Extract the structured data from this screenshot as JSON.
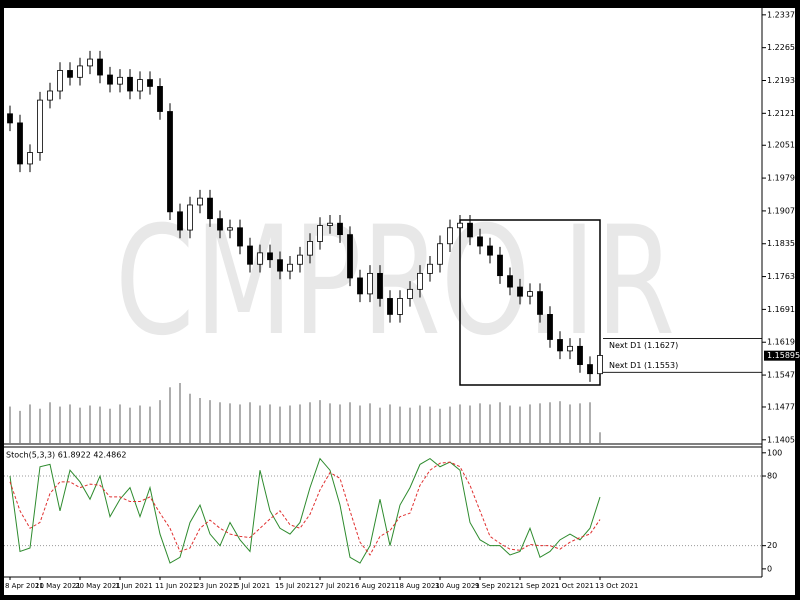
{
  "chart_data": [
    {
      "type": "candlestick",
      "watermark": "CMPRO.IR",
      "categories": [
        "8 Apr 2021",
        null,
        null,
        "10 May 2021",
        null,
        null,
        null,
        "20 May 2021",
        null,
        null,
        null,
        "1 Jun 2021",
        null,
        null,
        null,
        "11 Jun 2021",
        null,
        null,
        null,
        "23 Jun 2021",
        null,
        null,
        null,
        "5 Jul 2021",
        null,
        null,
        null,
        "15 Jul 2021",
        null,
        null,
        null,
        "27 Jul 2021",
        null,
        null,
        null,
        "6 Aug 2021",
        null,
        null,
        null,
        "18 Aug 2021",
        null,
        null,
        null,
        "30 Aug 2021",
        null,
        null,
        null,
        "9 Sep 2021",
        null,
        null,
        null,
        "21 Sep 2021",
        null,
        null,
        null,
        "1 Oct 2021",
        null,
        null,
        null,
        "13 Oct 2021"
      ],
      "open": [
        1.212,
        1.21,
        1.201,
        1.2035,
        1.215,
        1.217,
        1.2215,
        1.22,
        1.2225,
        1.224,
        1.2205,
        1.2185,
        1.22,
        1.217,
        1.2195,
        1.218,
        1.2125,
        1.1905,
        1.1865,
        1.192,
        1.1935,
        1.189,
        1.1865,
        1.187,
        1.183,
        1.179,
        1.1815,
        1.18,
        1.1775,
        1.179,
        1.181,
        1.184,
        1.1875,
        1.188,
        1.1855,
        1.176,
        1.1725,
        1.177,
        1.1715,
        1.168,
        1.1715,
        1.1735,
        1.177,
        1.179,
        1.1835,
        1.187,
        1.188,
        1.185,
        1.183,
        1.181,
        1.1765,
        1.174,
        1.172,
        1.173,
        1.168,
        1.1625,
        1.16,
        1.161,
        1.157,
        1.155
      ],
      "high": [
        1.2138,
        1.2118,
        1.2053,
        1.2168,
        1.2188,
        1.2233,
        1.2233,
        1.2243,
        1.2258,
        1.2258,
        1.2223,
        1.2218,
        1.2218,
        1.2213,
        1.2213,
        1.2198,
        1.2143,
        1.1923,
        1.1938,
        1.1953,
        1.1953,
        1.1908,
        1.1888,
        1.1888,
        1.1848,
        1.1833,
        1.1833,
        1.1818,
        1.1808,
        1.1828,
        1.1858,
        1.1893,
        1.1898,
        1.1898,
        1.1873,
        1.1778,
        1.1788,
        1.1788,
        1.1733,
        1.1733,
        1.1753,
        1.1788,
        1.1808,
        1.1853,
        1.1888,
        1.1898,
        1.1898,
        1.1868,
        1.1848,
        1.1828,
        1.1783,
        1.1758,
        1.1748,
        1.1748,
        1.1698,
        1.1643,
        1.1628,
        1.1628,
        1.1588,
        1.1608
      ],
      "low": [
        1.2082,
        1.1992,
        1.1992,
        1.2017,
        1.2132,
        1.2152,
        1.2182,
        1.2182,
        1.2207,
        1.2187,
        1.2167,
        1.2167,
        1.2152,
        1.2152,
        1.2162,
        1.2107,
        1.1887,
        1.1847,
        1.1847,
        1.1902,
        1.1872,
        1.1847,
        1.1847,
        1.1812,
        1.1772,
        1.1772,
        1.1782,
        1.1757,
        1.1757,
        1.1772,
        1.1792,
        1.1822,
        1.1857,
        1.1837,
        1.1742,
        1.1707,
        1.1707,
        1.1697,
        1.1662,
        1.1662,
        1.1697,
        1.1717,
        1.1752,
        1.1772,
        1.1817,
        1.1852,
        1.1832,
        1.1812,
        1.1792,
        1.1747,
        1.1722,
        1.1702,
        1.1702,
        1.1662,
        1.1607,
        1.1582,
        1.1582,
        1.1552,
        1.1532,
        1.1532
      ],
      "close": [
        1.21,
        1.201,
        1.2035,
        1.215,
        1.217,
        1.2215,
        1.22,
        1.2225,
        1.224,
        1.2205,
        1.2185,
        1.22,
        1.217,
        1.2195,
        1.218,
        1.2125,
        1.1905,
        1.1865,
        1.192,
        1.1935,
        1.189,
        1.1865,
        1.187,
        1.183,
        1.179,
        1.1815,
        1.18,
        1.1775,
        1.179,
        1.181,
        1.184,
        1.1875,
        1.188,
        1.1855,
        1.176,
        1.1725,
        1.177,
        1.1715,
        1.168,
        1.1715,
        1.1735,
        1.177,
        1.179,
        1.1835,
        1.187,
        1.188,
        1.185,
        1.183,
        1.181,
        1.1765,
        1.174,
        1.172,
        1.173,
        1.168,
        1.1625,
        1.16,
        1.161,
        1.157,
        1.155,
        1.159
      ],
      "volume": [
        34,
        30,
        36,
        32,
        38,
        34,
        36,
        33,
        35,
        34,
        32,
        36,
        33,
        35,
        34,
        40,
        52,
        56,
        46,
        42,
        40,
        38,
        37,
        36,
        38,
        35,
        36,
        34,
        35,
        36,
        38,
        40,
        37,
        36,
        38,
        35,
        37,
        33,
        36,
        34,
        33,
        35,
        34,
        32,
        34,
        36,
        35,
        37,
        36,
        38,
        35,
        34,
        36,
        37,
        38,
        39,
        36,
        37,
        38,
        10
      ],
      "up_color": "#ffffff",
      "down_color": "#000000",
      "outline_color": "#000000",
      "volume_color": "#777777",
      "ylim": [
        1.1398,
        1.2352
      ],
      "yticks": [
        {
          "value": 1.1405,
          "label": "1.14050"
        },
        {
          "value": 1.1477,
          "label": "1.14770"
        },
        {
          "value": 1.1547,
          "label": "1.15470"
        },
        {
          "value": 1.1619,
          "label": "1.16190"
        },
        {
          "value": 1.1691,
          "label": "1.16910"
        },
        {
          "value": 1.1763,
          "label": "1.17630"
        },
        {
          "value": 1.1835,
          "label": "1.18350"
        },
        {
          "value": 1.1907,
          "label": "1.19070"
        },
        {
          "value": 1.1979,
          "label": "1.19790"
        },
        {
          "value": 1.2051,
          "label": "1.20510"
        },
        {
          "value": 1.2121,
          "label": "1.21210"
        },
        {
          "value": 1.2193,
          "label": "1.21930"
        },
        {
          "value": 1.2265,
          "label": "1.22650"
        },
        {
          "value": 1.2337,
          "label": "1.23370"
        }
      ],
      "levels": [
        {
          "value": 1.1627,
          "label": "Next D1 (1.1627)"
        },
        {
          "value": 1.1553,
          "label": "Next D1 (1.1553)"
        }
      ],
      "current_price": 1.15895
    },
    {
      "type": "line",
      "title": "Stoch(5,3,3) 61.8922 42.4862",
      "series": [
        {
          "color": "#2e8b2e",
          "dashed": false,
          "values": [
            80,
            15,
            18,
            88,
            90,
            50,
            85,
            75,
            60,
            80,
            45,
            60,
            70,
            45,
            70,
            30,
            5,
            10,
            40,
            55,
            30,
            20,
            40,
            25,
            15,
            85,
            50,
            35,
            30,
            40,
            70,
            95,
            85,
            55,
            10,
            5,
            20,
            60,
            20,
            55,
            70,
            90,
            95,
            88,
            92,
            85,
            40,
            25,
            20,
            20,
            12,
            15,
            35,
            10,
            15,
            25,
            30,
            25,
            35,
            61.8922
          ]
        },
        {
          "color": "#e03030",
          "dashed": true,
          "values": [
            75,
            50,
            35,
            40,
            65,
            75,
            75,
            70,
            73,
            72,
            62,
            62,
            58,
            58,
            62,
            48,
            35,
            15,
            18,
            35,
            42,
            35,
            30,
            28,
            27,
            35,
            43,
            50,
            38,
            35,
            47,
            68,
            83,
            78,
            50,
            23,
            12,
            28,
            33,
            45,
            48,
            72,
            85,
            91,
            92,
            88,
            72,
            50,
            28,
            22,
            17,
            16,
            21,
            20,
            20,
            17,
            23,
            27,
            30,
            42.4862
          ]
        }
      ],
      "ylim": [
        -7,
        105
      ],
      "yticks": [
        0,
        20,
        80,
        100
      ],
      "levels": [
        20,
        80
      ]
    }
  ]
}
